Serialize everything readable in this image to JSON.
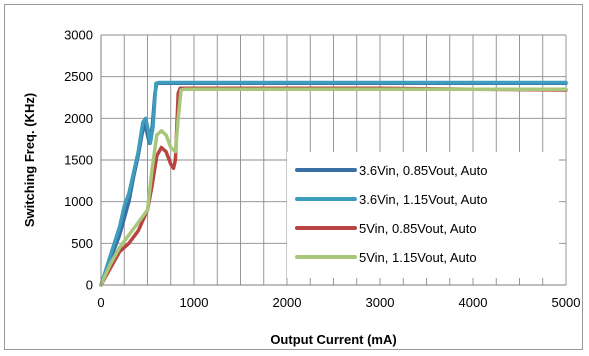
{
  "chart_data": {
    "type": "line",
    "title": "",
    "xlabel": "Output Current (mA)",
    "ylabel": "Switching Freq. (KHz)",
    "xlim": [
      0,
      5000
    ],
    "ylim": [
      0,
      3000
    ],
    "xticks": [
      0,
      1000,
      2000,
      3000,
      4000,
      5000
    ],
    "yticks": [
      0,
      500,
      1000,
      1500,
      2000,
      2500,
      3000
    ],
    "grid": true,
    "legend_position": "right",
    "series": [
      {
        "name": "3.6Vin, 0.85Vout, Auto",
        "color": "#3A6FA6",
        "x": [
          0,
          100,
          200,
          300,
          350,
          400,
          440,
          470,
          500,
          520,
          550,
          580,
          600,
          620,
          650,
          800,
          1000,
          2000,
          3000,
          4000,
          5000
        ],
        "y": [
          0,
          300,
          600,
          1000,
          1300,
          1550,
          1800,
          1950,
          1800,
          1700,
          1900,
          2300,
          2420,
          2420,
          2420,
          2420,
          2420,
          2420,
          2420,
          2420,
          2420
        ]
      },
      {
        "name": "3.6Vin, 1.15Vout, Auto",
        "color": "#3E9DBC",
        "x": [
          0,
          100,
          200,
          250,
          300,
          350,
          400,
          450,
          480,
          510,
          530,
          560,
          590,
          620,
          700,
          1000,
          2000,
          3000,
          4000,
          5000
        ],
        "y": [
          0,
          350,
          700,
          950,
          1100,
          1350,
          1600,
          1950,
          2000,
          1850,
          1700,
          1900,
          2420,
          2430,
          2430,
          2430,
          2430,
          2430,
          2430,
          2430
        ]
      },
      {
        "name": "5Vin, 0.85Vout, Auto",
        "color": "#B84542",
        "x": [
          0,
          100,
          200,
          300,
          400,
          500,
          550,
          600,
          650,
          700,
          750,
          780,
          800,
          830,
          850,
          1000,
          2000,
          3000,
          4000,
          5000
        ],
        "y": [
          0,
          200,
          400,
          500,
          650,
          900,
          1200,
          1550,
          1650,
          1600,
          1450,
          1400,
          1500,
          2300,
          2360,
          2360,
          2360,
          2360,
          2350,
          2340
        ]
      },
      {
        "name": "5Vin, 1.15Vout, Auto",
        "color": "#A9C77B",
        "x": [
          0,
          100,
          200,
          300,
          400,
          500,
          550,
          600,
          650,
          700,
          750,
          800,
          830,
          860,
          900,
          1000,
          2000,
          3000,
          4000,
          5000
        ],
        "y": [
          0,
          250,
          450,
          600,
          750,
          900,
          1400,
          1800,
          1850,
          1800,
          1650,
          1600,
          2000,
          2340,
          2350,
          2350,
          2350,
          2350,
          2350,
          2350
        ]
      }
    ]
  }
}
